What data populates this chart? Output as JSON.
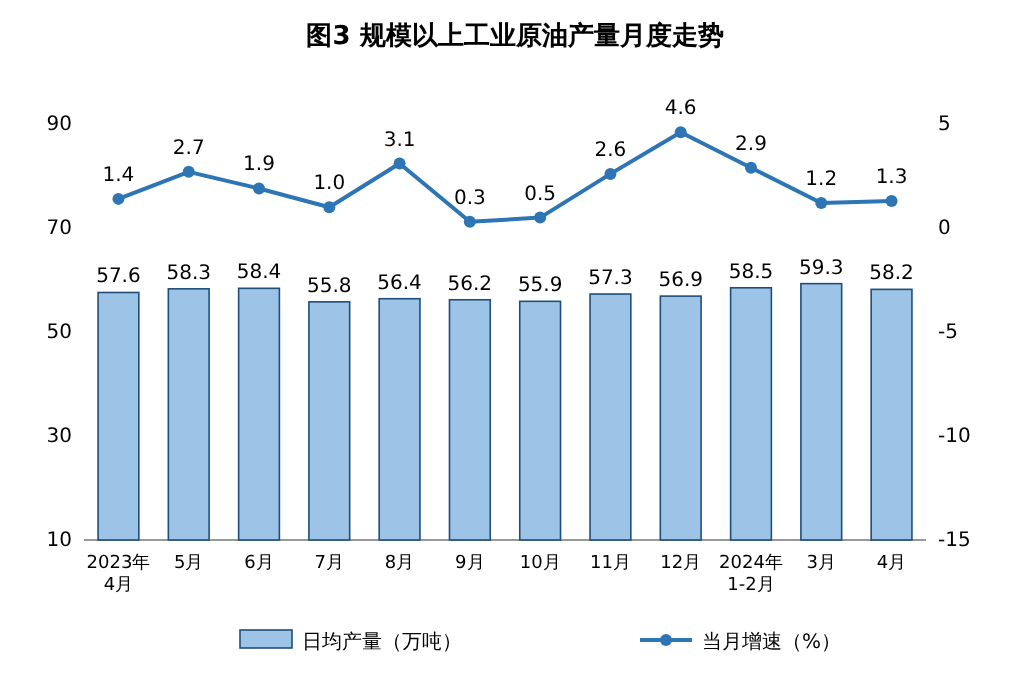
{
  "chart_data": {
    "type": "bar",
    "title": "图3  规模以上工业原油产量月度走势",
    "categories": [
      "2023年\n4月",
      "5月",
      "6月",
      "7月",
      "8月",
      "9月",
      "10月",
      "11月",
      "12月",
      "2024年\n1-2月",
      "3月",
      "4月"
    ],
    "series": [
      {
        "name": "日均产量（万吨）",
        "color": "#9dc3e6",
        "values": [
          57.6,
          58.3,
          58.4,
          55.8,
          56.4,
          56.2,
          55.9,
          57.3,
          56.9,
          58.5,
          59.3,
          58.2
        ]
      },
      {
        "name": "当月增速（%）",
        "type": "line",
        "axis": "y2",
        "color": "#2e75b6",
        "values": [
          1.4,
          2.7,
          1.9,
          1.0,
          3.1,
          0.3,
          0.5,
          2.6,
          4.6,
          2.9,
          1.2,
          1.3
        ],
        "value_labels": [
          "1.4",
          "2.7",
          "1.9",
          "1.0",
          "3.1",
          "0.3",
          "0.5",
          "2.6",
          "4.6",
          "2.9",
          "1.2",
          "1.3"
        ]
      }
    ],
    "ylim": [
      10,
      90
    ],
    "yticks": [
      10,
      30,
      50,
      70,
      90
    ],
    "y2lim": [
      -15,
      5
    ],
    "y2ticks": [
      -15,
      -10,
      -5,
      0,
      5
    ],
    "data_labels": true,
    "legend": "bottom",
    "marker": "circle",
    "line_style": "solid"
  }
}
